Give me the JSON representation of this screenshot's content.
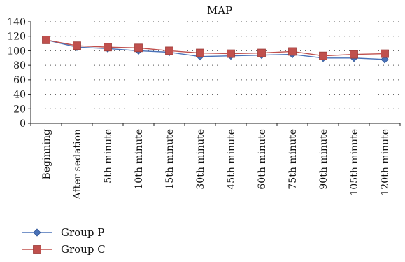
{
  "chart_data": {
    "type": "line",
    "title": "MAP",
    "xlabel": "",
    "ylabel": "",
    "ylim": [
      0,
      140
    ],
    "yticks": [
      0,
      20,
      40,
      60,
      80,
      100,
      120,
      140
    ],
    "grid": "dotted-horizontal",
    "legend_position": "bottom-left",
    "categories": [
      "Beginning",
      "After sedation",
      "5th minute",
      "10th minute",
      "15th minute",
      "30th minute",
      "45th minute",
      "60th minute",
      "75th minute",
      "90th minute",
      "105th minute",
      "120th minute"
    ],
    "series": [
      {
        "name": "Group P",
        "color": "#4a72b8",
        "marker": "diamond",
        "values": [
          115,
          105,
          103,
          100,
          98,
          92,
          93,
          94,
          95,
          90,
          90,
          88
        ]
      },
      {
        "name": "Group C",
        "color": "#c0504d",
        "marker": "square",
        "values": [
          115,
          107,
          105,
          104,
          100,
          97,
          96,
          97,
          99,
          93,
          95,
          96
        ]
      }
    ]
  }
}
